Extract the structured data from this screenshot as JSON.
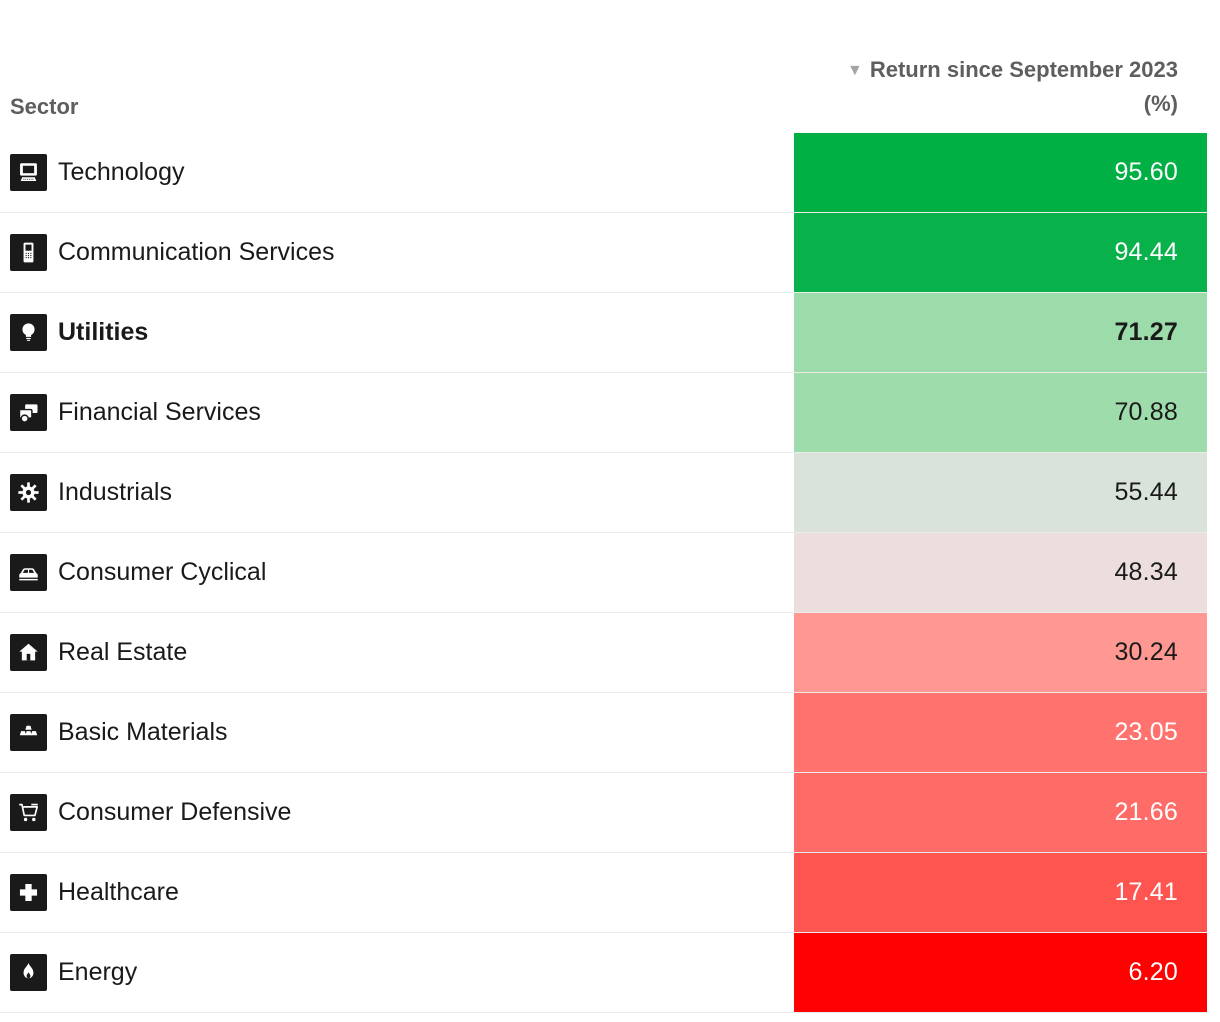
{
  "table": {
    "sector_header": "Sector",
    "sort_icon": "▼",
    "return_header_line1": "Return since September 2023",
    "return_header_line2": "(%)",
    "rows": [
      {
        "sector": "Technology",
        "icon": "technology-icon",
        "value": "95.60",
        "bg": "#00b044",
        "fg": "#ffffff",
        "bold": false
      },
      {
        "sector": "Communication Services",
        "icon": "communication-services-icon",
        "value": "94.44",
        "bg": "#09b14a",
        "fg": "#ffffff",
        "bold": false
      },
      {
        "sector": "Utilities",
        "icon": "utilities-icon",
        "value": "71.27",
        "bg": "#9cdcaa",
        "fg": "#1a1a1a",
        "bold": true
      },
      {
        "sector": "Financial Services",
        "icon": "financial-services-icon",
        "value": "70.88",
        "bg": "#9edcac",
        "fg": "#1a1a1a",
        "bold": false
      },
      {
        "sector": "Industrials",
        "icon": "industrials-icon",
        "value": "55.44",
        "bg": "#d9e3da",
        "fg": "#1a1a1a",
        "bold": false
      },
      {
        "sector": "Consumer Cyclical",
        "icon": "consumer-cyclical-icon",
        "value": "48.34",
        "bg": "#ecdedd",
        "fg": "#1a1a1a",
        "bold": false
      },
      {
        "sector": "Real Estate",
        "icon": "real-estate-icon",
        "value": "30.24",
        "bg": "#ff9893",
        "fg": "#1a1a1a",
        "bold": false
      },
      {
        "sector": "Basic Materials",
        "icon": "basic-materials-icon",
        "value": "23.05",
        "bg": "#ff726e",
        "fg": "#ffffff",
        "bold": false
      },
      {
        "sector": "Consumer Defensive",
        "icon": "consumer-defensive-icon",
        "value": "21.66",
        "bg": "#ff6c68",
        "fg": "#ffffff",
        "bold": false
      },
      {
        "sector": "Healthcare",
        "icon": "healthcare-icon",
        "value": "17.41",
        "bg": "#ff5551",
        "fg": "#ffffff",
        "bold": false
      },
      {
        "sector": "Energy",
        "icon": "energy-icon",
        "value": "6.20",
        "bg": "#fe0100",
        "fg": "#ffffff",
        "bold": false
      }
    ]
  },
  "chart_data": {
    "type": "table",
    "title": "Return since September 2023 (%)",
    "categories": [
      "Technology",
      "Communication Services",
      "Utilities",
      "Financial Services",
      "Industrials",
      "Consumer Cyclical",
      "Real Estate",
      "Basic Materials",
      "Consumer Defensive",
      "Healthcare",
      "Energy"
    ],
    "values": [
      95.6,
      94.44,
      71.27,
      70.88,
      55.44,
      48.34,
      30.24,
      23.05,
      21.66,
      17.41,
      6.2
    ],
    "sort": "descending by return",
    "highlighted_row": "Utilities",
    "color_scale": {
      "high": "#00b044",
      "mid": "#e8e0dc",
      "low": "#fe0100"
    }
  }
}
